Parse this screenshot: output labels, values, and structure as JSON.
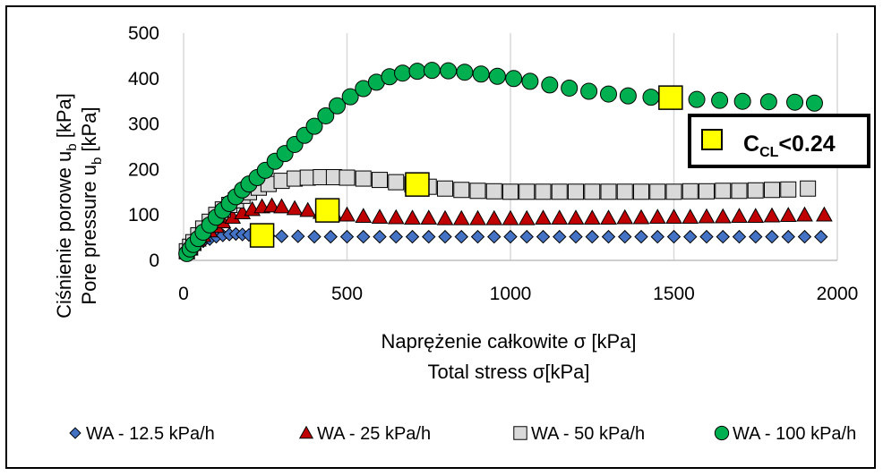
{
  "chart_data": {
    "type": "scatter",
    "xlabel_line1": "Naprężenie całkowite σ [kPa]",
    "xlabel_line2": "Total stress σ[kPa]",
    "ylabel_line1": "Ciśnienie porowe u",
    "ylabel_line1_sub": "b",
    "ylabel_line1_end": " [kPa]",
    "ylabel_line2": "Pore pressure u",
    "ylabel_line2_sub": "b",
    "ylabel_line2_end": " [kPa]",
    "xlim": [
      0,
      2000
    ],
    "ylim": [
      0,
      500
    ],
    "xticks": [
      0,
      500,
      1000,
      1500,
      2000
    ],
    "yticks": [
      0,
      100,
      200,
      300,
      400,
      500
    ],
    "grid": "vertical",
    "legend_position": "bottom",
    "series": [
      {
        "name": "WA - 12.5 kPa/h",
        "marker": "diamond",
        "color": "#4472C4",
        "x": [
          10,
          20,
          30,
          40,
          60,
          80,
          100,
          120,
          140,
          160,
          180,
          200,
          230,
          260,
          300,
          350,
          400,
          450,
          500,
          550,
          600,
          650,
          700,
          750,
          800,
          850,
          900,
          950,
          1000,
          1050,
          1100,
          1150,
          1200,
          1250,
          1300,
          1350,
          1400,
          1450,
          1500,
          1550,
          1600,
          1650,
          1700,
          1750,
          1800,
          1850,
          1900,
          1950
        ],
        "y": [
          15,
          22,
          30,
          35,
          42,
          47,
          52,
          55,
          57,
          58,
          57,
          56,
          55,
          54,
          53,
          53,
          52,
          52,
          52,
          52,
          52,
          52,
          52,
          52,
          52,
          52,
          52,
          52,
          52,
          52,
          52,
          52,
          52,
          52,
          52,
          52,
          52,
          52,
          52,
          52,
          52,
          52,
          52,
          52,
          52,
          52,
          52,
          52
        ]
      },
      {
        "name": "WA - 25 kPa/h",
        "marker": "triangle",
        "color": "#C00000",
        "x": [
          10,
          20,
          30,
          45,
          60,
          80,
          100,
          120,
          150,
          180,
          210,
          240,
          270,
          300,
          340,
          380,
          420,
          460,
          500,
          550,
          600,
          650,
          700,
          750,
          800,
          850,
          900,
          950,
          1000,
          1050,
          1100,
          1150,
          1200,
          1250,
          1300,
          1350,
          1400,
          1450,
          1500,
          1550,
          1600,
          1650,
          1700,
          1750,
          1800,
          1850,
          1900,
          1960
        ],
        "y": [
          18,
          25,
          35,
          45,
          55,
          65,
          75,
          85,
          95,
          105,
          112,
          118,
          120,
          118,
          114,
          110,
          106,
          103,
          100,
          97,
          95,
          94,
          93,
          93,
          92,
          92,
          92,
          92,
          92,
          92,
          93,
          93,
          93,
          93,
          93,
          94,
          94,
          95,
          95,
          95,
          96,
          96,
          97,
          97,
          98,
          99,
          100,
          100
        ]
      },
      {
        "name": "WA - 50 kPa/h",
        "marker": "square",
        "color": "#D9D9D9",
        "x": [
          10,
          20,
          30,
          45,
          60,
          80,
          100,
          120,
          140,
          160,
          180,
          200,
          230,
          260,
          300,
          340,
          380,
          420,
          460,
          500,
          550,
          600,
          650,
          700,
          750,
          800,
          850,
          900,
          950,
          1000,
          1050,
          1100,
          1150,
          1200,
          1250,
          1300,
          1350,
          1400,
          1450,
          1500,
          1550,
          1600,
          1650,
          1700,
          1750,
          1800,
          1850,
          1910
        ],
        "y": [
          20,
          30,
          40,
          55,
          70,
          85,
          100,
          112,
          122,
          132,
          142,
          150,
          160,
          168,
          175,
          180,
          182,
          183,
          183,
          182,
          180,
          177,
          172,
          167,
          162,
          158,
          155,
          153,
          152,
          151,
          151,
          151,
          151,
          151,
          151,
          151,
          151,
          151,
          151,
          151,
          152,
          152,
          153,
          153,
          154,
          155,
          156,
          158
        ]
      },
      {
        "name": "WA - 100 kPa/h",
        "marker": "circle",
        "color": "#00B050",
        "x": [
          10,
          20,
          30,
          45,
          60,
          80,
          100,
          120,
          140,
          160,
          180,
          200,
          225,
          250,
          280,
          310,
          340,
          370,
          400,
          435,
          470,
          510,
          550,
          590,
          630,
          670,
          715,
          760,
          810,
          860,
          910,
          960,
          1010,
          1060,
          1120,
          1180,
          1240,
          1300,
          1360,
          1430,
          1500,
          1570,
          1640,
          1710,
          1790,
          1870,
          1930
        ],
        "y": [
          15,
          25,
          35,
          48,
          62,
          78,
          95,
          110,
          125,
          140,
          155,
          168,
          182,
          198,
          218,
          235,
          255,
          275,
          295,
          318,
          340,
          360,
          378,
          392,
          404,
          412,
          416,
          418,
          417,
          414,
          410,
          405,
          400,
          394,
          386,
          379,
          372,
          366,
          362,
          359,
          356,
          354,
          352,
          350,
          349,
          348,
          346
        ]
      }
    ],
    "highlight": {
      "label_main": "C",
      "label_sub": "CL",
      "label_rest": "<0.24",
      "color": "#FFFF00",
      "points": [
        {
          "x": 240,
          "y": 55
        },
        {
          "x": 440,
          "y": 110
        },
        {
          "x": 715,
          "y": 167
        },
        {
          "x": 1490,
          "y": 358
        }
      ]
    }
  }
}
